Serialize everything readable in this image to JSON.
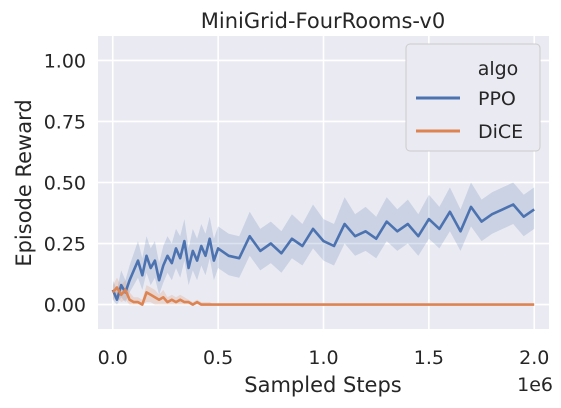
{
  "chart_data": {
    "type": "line",
    "title": "MiniGrid-FourRooms-v0",
    "xlabel": "Sampled Steps",
    "ylabel": "Episode Reward",
    "x_offset_text": "1e6",
    "xlim": [
      -0.07,
      2.07
    ],
    "ylim": [
      -0.1,
      1.1
    ],
    "xticks": [
      0.0,
      0.5,
      1.0,
      1.5,
      2.0
    ],
    "xtick_labels": [
      "0.0",
      "0.5",
      "1.0",
      "1.5",
      "2.0"
    ],
    "yticks": [
      0.0,
      0.25,
      0.5,
      0.75,
      1.0
    ],
    "ytick_labels": [
      "0.00",
      "0.25",
      "0.50",
      "0.75",
      "1.00"
    ],
    "grid": true,
    "legend": {
      "title": "algo",
      "placement": "top-right"
    },
    "series": [
      {
        "name": "PPO",
        "color": "#4c72b0",
        "x": [
          0.0,
          0.02,
          0.04,
          0.06,
          0.08,
          0.1,
          0.12,
          0.14,
          0.16,
          0.18,
          0.2,
          0.22,
          0.24,
          0.26,
          0.28,
          0.3,
          0.32,
          0.34,
          0.36,
          0.38,
          0.4,
          0.42,
          0.44,
          0.46,
          0.48,
          0.5,
          0.55,
          0.6,
          0.65,
          0.7,
          0.75,
          0.8,
          0.85,
          0.9,
          0.95,
          1.0,
          1.05,
          1.1,
          1.15,
          1.2,
          1.25,
          1.3,
          1.35,
          1.4,
          1.45,
          1.5,
          1.55,
          1.6,
          1.65,
          1.7,
          1.75,
          1.8,
          1.85,
          1.9,
          1.95,
          2.0
        ],
        "values": [
          0.06,
          0.02,
          0.08,
          0.05,
          0.1,
          0.14,
          0.18,
          0.12,
          0.2,
          0.15,
          0.18,
          0.1,
          0.16,
          0.2,
          0.17,
          0.23,
          0.19,
          0.26,
          0.15,
          0.22,
          0.18,
          0.24,
          0.2,
          0.27,
          0.18,
          0.23,
          0.2,
          0.19,
          0.28,
          0.22,
          0.25,
          0.21,
          0.27,
          0.24,
          0.31,
          0.26,
          0.24,
          0.33,
          0.28,
          0.3,
          0.27,
          0.34,
          0.3,
          0.33,
          0.28,
          0.35,
          0.31,
          0.38,
          0.3,
          0.4,
          0.34,
          0.37,
          0.39,
          0.41,
          0.36,
          0.39
        ],
        "band_lower": [
          0.02,
          0.0,
          0.03,
          0.01,
          0.05,
          0.08,
          0.11,
          0.06,
          0.13,
          0.08,
          0.11,
          0.04,
          0.09,
          0.13,
          0.1,
          0.15,
          0.11,
          0.18,
          0.08,
          0.14,
          0.1,
          0.16,
          0.12,
          0.19,
          0.1,
          0.15,
          0.12,
          0.11,
          0.2,
          0.14,
          0.17,
          0.13,
          0.19,
          0.16,
          0.23,
          0.18,
          0.16,
          0.25,
          0.2,
          0.22,
          0.19,
          0.26,
          0.22,
          0.25,
          0.2,
          0.27,
          0.23,
          0.3,
          0.22,
          0.32,
          0.26,
          0.29,
          0.31,
          0.33,
          0.28,
          0.31
        ],
        "band_upper": [
          0.1,
          0.06,
          0.14,
          0.1,
          0.16,
          0.21,
          0.26,
          0.19,
          0.28,
          0.23,
          0.26,
          0.17,
          0.24,
          0.28,
          0.25,
          0.31,
          0.28,
          0.35,
          0.23,
          0.31,
          0.27,
          0.33,
          0.29,
          0.36,
          0.27,
          0.32,
          0.29,
          0.28,
          0.38,
          0.31,
          0.34,
          0.3,
          0.37,
          0.33,
          0.41,
          0.35,
          0.33,
          0.44,
          0.37,
          0.4,
          0.36,
          0.44,
          0.39,
          0.43,
          0.37,
          0.45,
          0.4,
          0.48,
          0.39,
          0.5,
          0.43,
          0.46,
          0.48,
          0.5,
          0.45,
          0.48
        ]
      },
      {
        "name": "DiCE",
        "color": "#dd8452",
        "x": [
          0.0,
          0.02,
          0.04,
          0.06,
          0.08,
          0.1,
          0.12,
          0.14,
          0.16,
          0.18,
          0.2,
          0.22,
          0.24,
          0.26,
          0.28,
          0.3,
          0.32,
          0.34,
          0.36,
          0.38,
          0.4,
          0.42,
          0.44,
          0.46,
          0.48,
          0.5,
          0.6,
          0.8,
          1.0,
          1.2,
          1.4,
          1.6,
          1.8,
          2.0
        ],
        "values": [
          0.05,
          0.07,
          0.04,
          0.06,
          0.02,
          0.01,
          0.01,
          0.0,
          0.05,
          0.04,
          0.03,
          0.02,
          0.03,
          0.01,
          0.02,
          0.01,
          0.02,
          0.01,
          0.01,
          0.0,
          0.01,
          0.0,
          0.0,
          0.0,
          0.0,
          0.0,
          0.0,
          0.0,
          0.0,
          0.0,
          0.0,
          0.0,
          0.0,
          0.0
        ],
        "band_lower": [
          0.02,
          0.03,
          0.01,
          0.02,
          0.0,
          0.0,
          0.0,
          0.0,
          0.01,
          0.01,
          0.0,
          0.0,
          0.0,
          0.0,
          0.0,
          0.0,
          0.0,
          0.0,
          0.0,
          0.0,
          0.0,
          0.0,
          0.0,
          0.0,
          0.0,
          0.0,
          0.0,
          0.0,
          0.0,
          0.0,
          0.0,
          0.0,
          0.0,
          0.0
        ],
        "band_upper": [
          0.08,
          0.11,
          0.08,
          0.1,
          0.05,
          0.03,
          0.03,
          0.02,
          0.08,
          0.07,
          0.06,
          0.04,
          0.06,
          0.03,
          0.04,
          0.03,
          0.04,
          0.03,
          0.02,
          0.01,
          0.02,
          0.01,
          0.01,
          0.01,
          0.0,
          0.0,
          0.0,
          0.0,
          0.0,
          0.0,
          0.0,
          0.0,
          0.0,
          0.0
        ]
      }
    ]
  },
  "colors": {
    "plot_background": "#eaeaf2",
    "grid": "#ffffff",
    "text": "#262626",
    "legend_background": "#eaeaf2",
    "legend_border": "#cccccc"
  }
}
